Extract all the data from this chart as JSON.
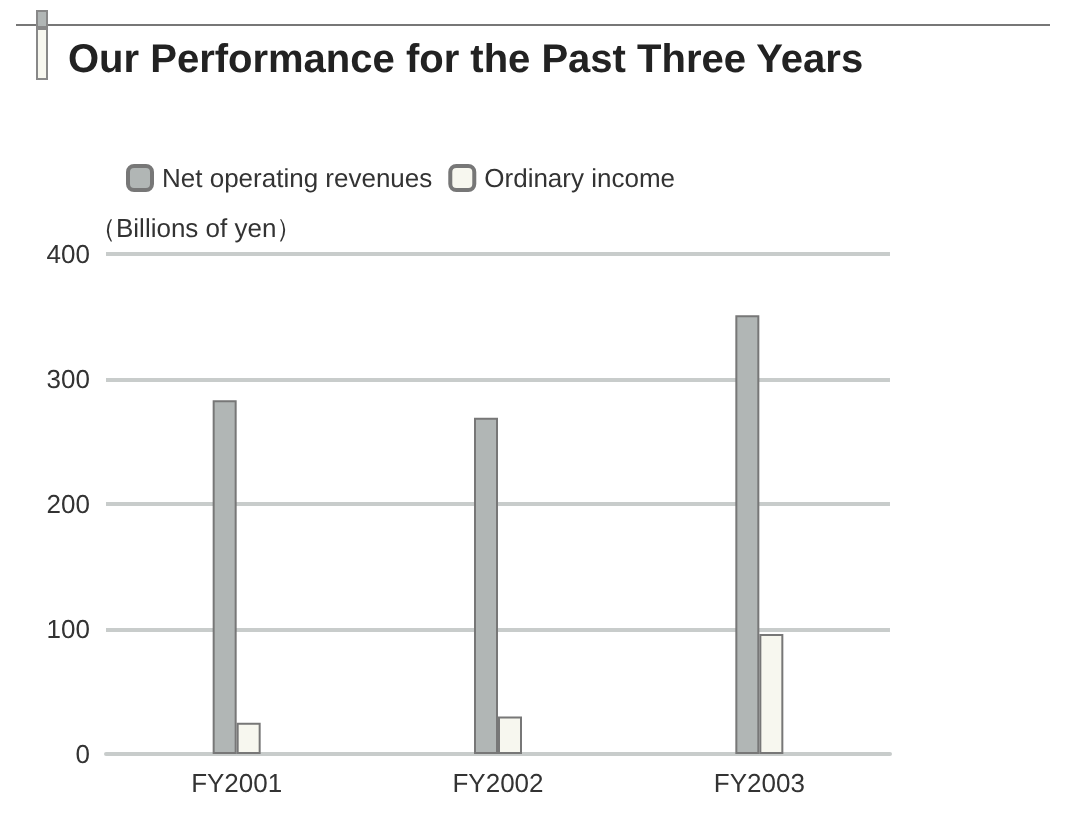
{
  "chart_data": {
    "type": "bar",
    "title": "Our Performance for the Past Three Years",
    "ylabel": "（Billions of yen）",
    "categories": [
      "FY2001",
      "FY2002",
      "FY2003"
    ],
    "series": [
      {
        "name": "Net operating revenues",
        "color": "#b1b6b5",
        "values": [
          283,
          269,
          351
        ]
      },
      {
        "name": "Ordinary income",
        "color": "#f7f7ef",
        "values": [
          25,
          30,
          96
        ]
      }
    ],
    "ylim": [
      0,
      400
    ],
    "yticks": [
      0,
      100,
      200,
      300,
      400
    ],
    "grid": "y",
    "legend": "top left"
  }
}
